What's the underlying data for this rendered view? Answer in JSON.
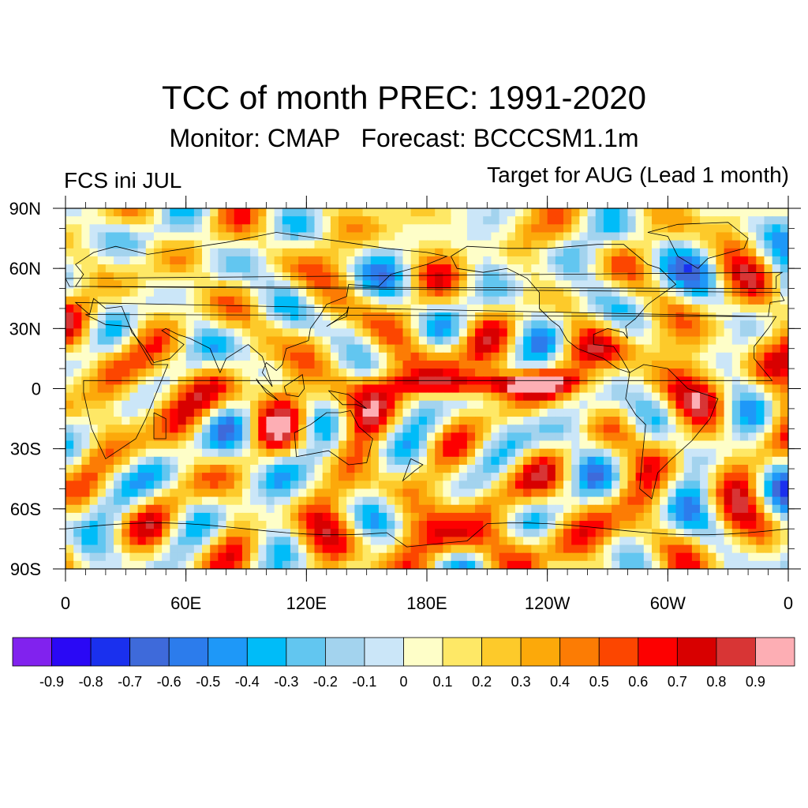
{
  "header": {
    "title": "TCC of month PREC: 1991-2020",
    "subtitle": "Monitor: CMAP   Forecast: BCCCSM1.1m",
    "left_label": "FCS ini JUL",
    "right_label": "Target for AUG (Lead 1 month)"
  },
  "map": {
    "projection": "cylindrical-equidistant",
    "lon_range": [
      0,
      360
    ],
    "lat_range": [
      -90,
      90
    ],
    "lat_ticks": [
      "90N",
      "60N",
      "30N",
      "0",
      "30S",
      "60S",
      "90S"
    ],
    "lon_ticks": [
      "0",
      "60E",
      "120E",
      "180E",
      "120W",
      "60W",
      "0"
    ],
    "stipple_meaning_colors": {
      "positive_significant": "#22aa22",
      "negative_significant": "#8822ee"
    },
    "coastline_color": "#000000"
  },
  "colorbar": {
    "colors": [
      "#8122ee",
      "#2a08f5",
      "#1a30ee",
      "#3e6ada",
      "#2c7cec",
      "#1e98f8",
      "#00bcf8",
      "#62c6f0",
      "#a3d3ee",
      "#cbe6f8",
      "#fefec8",
      "#fee866",
      "#fdca2a",
      "#fca90a",
      "#fc7c04",
      "#fc4600",
      "#fd0000",
      "#d80000",
      "#d83535",
      "#fdaeb4"
    ],
    "labels": [
      "-0.9",
      "-0.8",
      "-0.7",
      "-0.6",
      "-0.5",
      "-0.4",
      "-0.3",
      "-0.2",
      "-0.1",
      "0",
      "0.1",
      "0.2",
      "0.3",
      "0.4",
      "0.5",
      "0.6",
      "0.7",
      "0.8",
      "0.9"
    ]
  }
}
